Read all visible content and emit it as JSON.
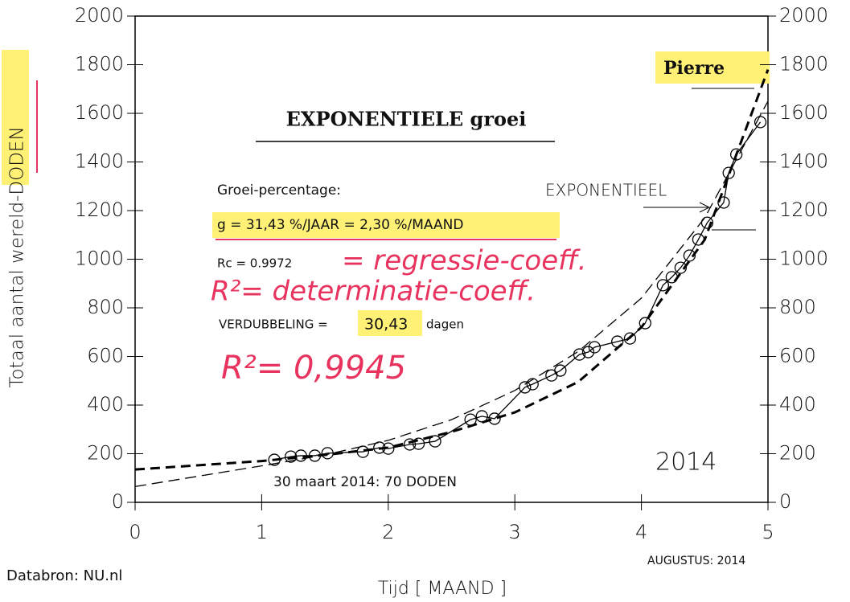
{
  "chart_data": {
    "type": "line",
    "xlabel": "Tijd [ MAAND ]",
    "ylabel": "Totaal aantal wereld-DODEN",
    "xlim": [
      0,
      5
    ],
    "xticks": [
      0,
      1,
      2,
      3,
      4,
      5
    ],
    "ylim": [
      0,
      2000
    ],
    "yticks": [
      0,
      200,
      400,
      600,
      800,
      1000,
      1200,
      1400,
      1600,
      1800,
      2000
    ],
    "y2lim": [
      0,
      2000
    ],
    "y2ticks": [
      0,
      200,
      400,
      600,
      800,
      1000,
      1200,
      1400,
      1600,
      1800,
      2000
    ],
    "series": [
      {
        "color": "#000000",
        "style": "solid-markers",
        "x": [
          1.1,
          1.23,
          1.31,
          1.42,
          1.52,
          1.8,
          1.93,
          2.0,
          2.17,
          2.24,
          2.37,
          2.65,
          2.74,
          2.84,
          3.08,
          3.14,
          3.29,
          3.36,
          3.51,
          3.58,
          3.63,
          3.81,
          3.91,
          4.03,
          4.17,
          4.24,
          4.31,
          4.38,
          4.45,
          4.52,
          4.65,
          4.69,
          4.75,
          4.94
        ],
        "values": [
          175,
          188,
          192,
          192,
          202,
          208,
          225,
          221,
          238,
          241,
          251,
          340,
          354,
          344,
          473,
          486,
          522,
          542,
          608,
          618,
          638,
          661,
          674,
          737,
          893,
          926,
          965,
          1015,
          1081,
          1150,
          1233,
          1355,
          1431,
          1564
        ]
      },
      {
        "color": "#000000",
        "style": "thick-dashed",
        "x": [
          0,
          1,
          1.5,
          2,
          2.5,
          3,
          3.5,
          4,
          4.5,
          5
        ],
        "values": [
          135,
          170,
          195,
          225,
          290,
          370,
          495,
          720,
          1080,
          1780
        ]
      },
      {
        "color": "#000000",
        "style": "thin-dashed",
        "x": [
          0,
          1,
          1.5,
          2,
          2.5,
          3,
          3.5,
          4,
          4.5,
          5
        ],
        "values": [
          65,
          150,
          195,
          255,
          340,
          460,
          620,
          840,
          1170,
          1650
        ]
      }
    ],
    "annotations": {
      "heading": "EXPONENTIELE groei",
      "growth_label": "Groei-percentage:",
      "growth": "g = 31,43 %/JAAR = 2,30 %/MAAND",
      "rc": "Rc = 0.9972",
      "doubling_prefix": "VERDUBBELING =",
      "doubling_value": "30,43",
      "doubling_suffix": "dagen",
      "exponential": "EXPONENTIEEL",
      "pierre": "Pierre",
      "year": "2014",
      "note": "30 maart 2014: 70 DODEN",
      "source": "Databron: NU.nl",
      "month": "AUGUSTUS: 2014",
      "handwriting": [
        "= regressie-coeff.",
        "R²= determinatie-coeff.",
        "R²= 0,9945"
      ]
    }
  }
}
